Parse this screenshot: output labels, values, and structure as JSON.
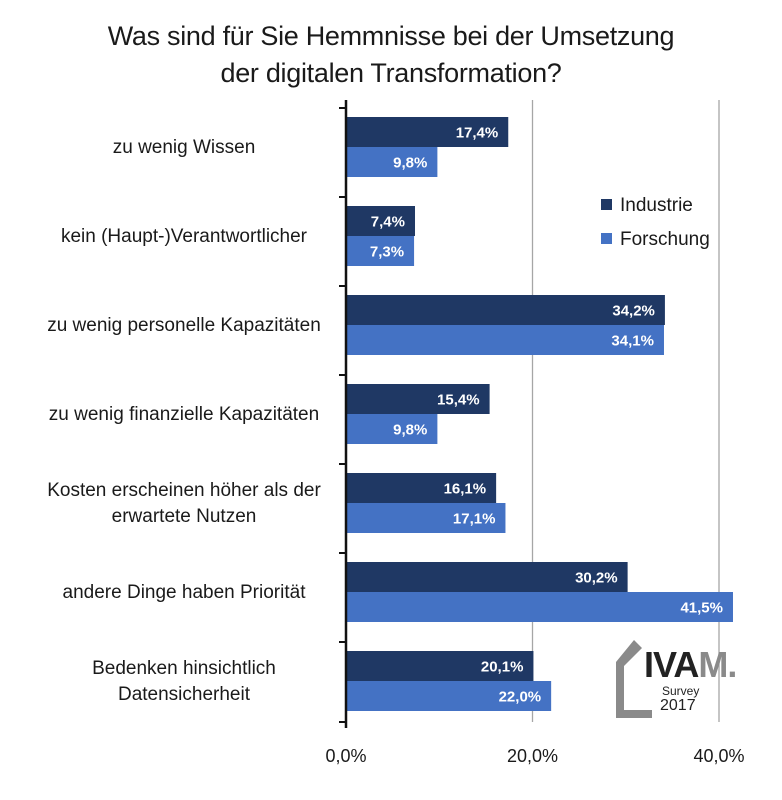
{
  "chart_data": {
    "type": "bar",
    "orientation": "horizontal",
    "title_lines": [
      "Was sind für Sie Hemmnisse bei der Umsetzung",
      "der digitalen Transformation?"
    ],
    "categories": [
      [
        "zu wenig Wissen"
      ],
      [
        "kein (Haupt-)Verantwortlicher"
      ],
      [
        "zu wenig personelle Kapazitäten"
      ],
      [
        "zu wenig finanzielle Kapazitäten"
      ],
      [
        "Kosten erscheinen höher als der",
        "erwartete Nutzen"
      ],
      [
        "andere Dinge haben Priorität"
      ],
      [
        "Bedenken hinsichtlich",
        "Datensicherheit"
      ]
    ],
    "series": [
      {
        "name": "Industrie",
        "color": "#1f3864",
        "values": [
          17.4,
          7.4,
          34.2,
          15.4,
          16.1,
          30.2,
          20.1
        ],
        "labels": [
          "17,4%",
          "7,4%",
          "34,2%",
          "15,4%",
          "16,1%",
          "30,2%",
          "20,1%"
        ]
      },
      {
        "name": "Forschung",
        "color": "#4472c4",
        "values": [
          9.8,
          7.3,
          34.1,
          9.8,
          17.1,
          41.5,
          22.0
        ],
        "labels": [
          "9,8%",
          "7,3%",
          "34,1%",
          "9,8%",
          "17,1%",
          "41,5%",
          "22,0%"
        ]
      }
    ],
    "xlim": [
      0,
      40
    ],
    "xticks": [
      0,
      20,
      40
    ],
    "xtick_labels": [
      "0,0%",
      "20,0%",
      "40,0%"
    ],
    "grid": true,
    "legend_position": "top-right"
  },
  "logo": {
    "text_main": "IVA",
    "text_accent": "M.",
    "survey": "Survey",
    "year": "2017"
  }
}
